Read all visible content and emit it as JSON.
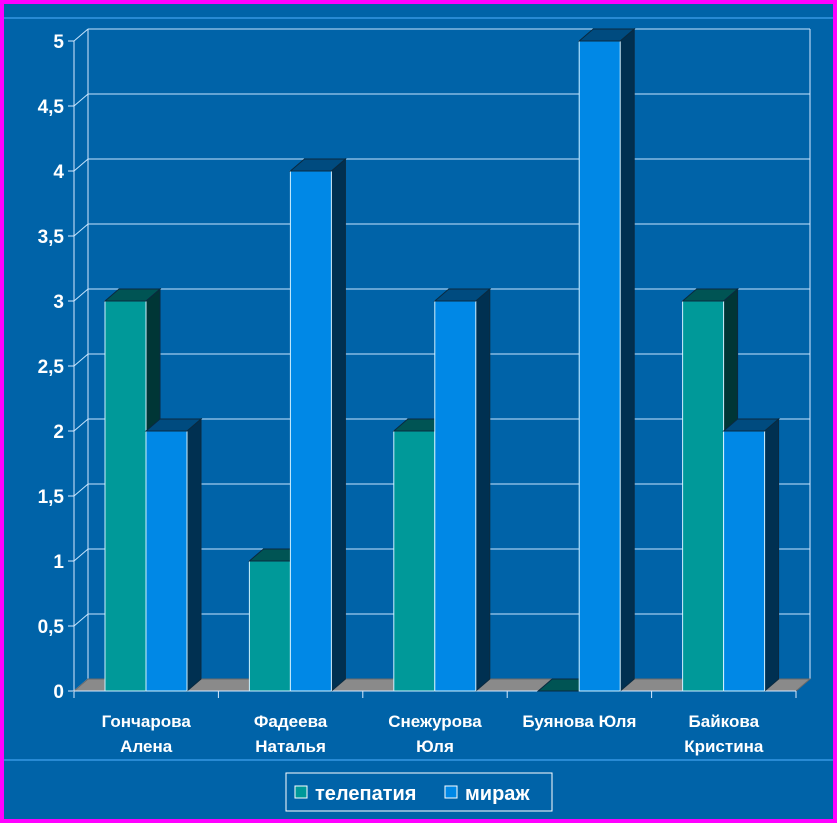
{
  "chart_data": {
    "type": "bar",
    "title": "",
    "xlabel": "",
    "ylabel": "",
    "ylim": [
      0,
      5
    ],
    "ytick_labels": [
      "0",
      "0,5",
      "1",
      "1,5",
      "2",
      "2,5",
      "3",
      "3,5",
      "4",
      "4,5",
      "5"
    ],
    "categories": [
      [
        "Гончарова",
        "Алена"
      ],
      [
        "Фадеева",
        "Наталья"
      ],
      [
        "Снежурова",
        "Юля"
      ],
      [
        "Буянова Юля"
      ],
      [
        "Байкова",
        "Кристина"
      ]
    ],
    "series": [
      {
        "name": "телепатия",
        "values": [
          3,
          1,
          2,
          0,
          3
        ],
        "color": "#009999"
      },
      {
        "name": "мираж",
        "values": [
          2,
          4,
          3,
          5,
          2
        ],
        "color": "#0088e6"
      }
    ],
    "grid": true,
    "legend_position": "bottom-center",
    "colors": {
      "frame": "#ff00ff",
      "background": "#0063a8",
      "gridline": "#c8e6ff",
      "axis": "#d8eaff",
      "floor": "#8a8a8a",
      "text": "#ffffff"
    }
  }
}
